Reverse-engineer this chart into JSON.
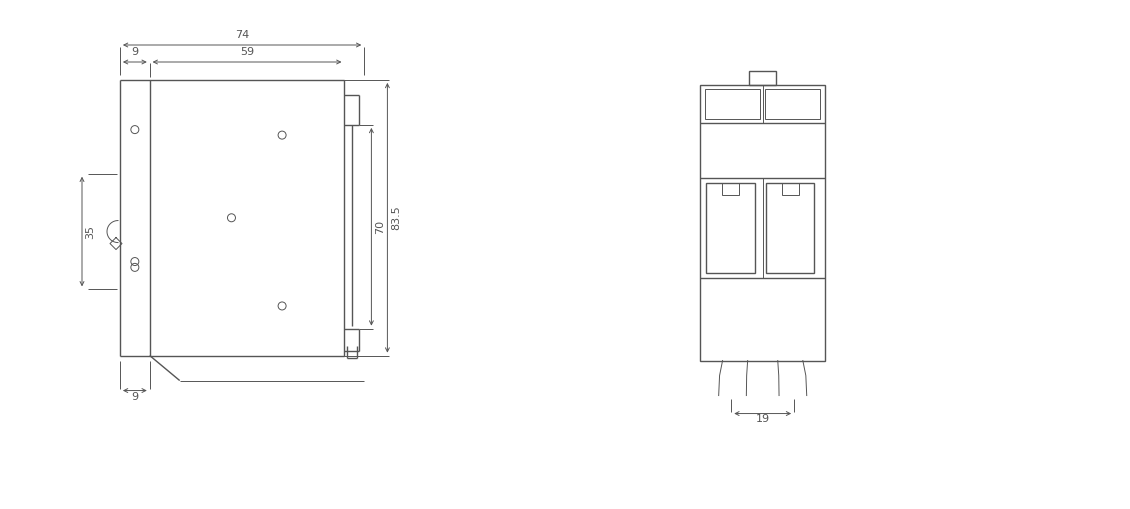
{
  "bg_color": "#ffffff",
  "line_color": "#555555",
  "dim_color": "#555555",
  "lw": 1.0,
  "tlw": 0.7,
  "dim_lw": 0.7,
  "dim_fs": 8,
  "fig_width": 11.3,
  "fig_height": 5.09,
  "dpi": 100,
  "dims": {
    "d74": "74",
    "d59": "59",
    "d9t": "9",
    "d9b": "9",
    "d35": "35",
    "d70": "70",
    "d835": "83.5",
    "d19": "19"
  }
}
